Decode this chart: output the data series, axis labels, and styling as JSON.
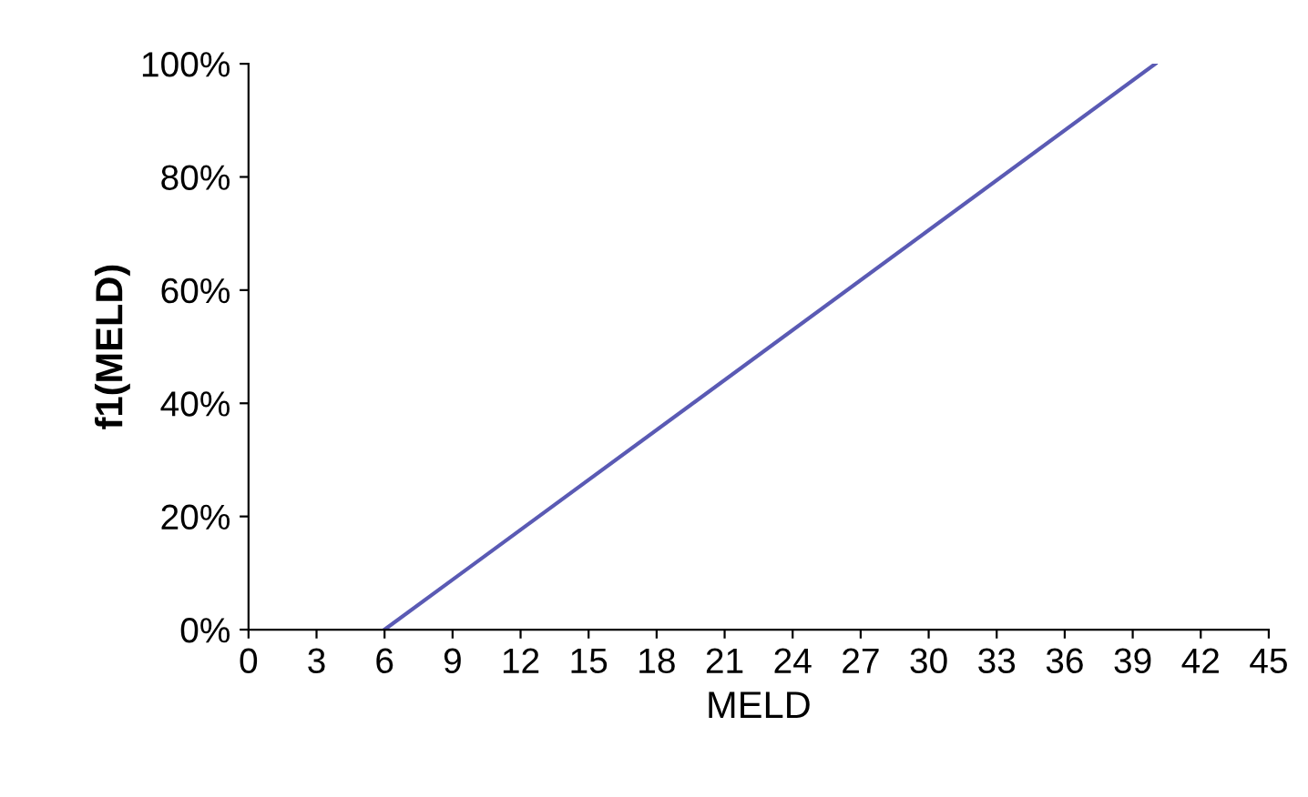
{
  "chart_data": {
    "type": "line",
    "xlabel": "MELD",
    "ylabel": "f1(MELD)",
    "x": [
      6,
      40
    ],
    "values": [
      0,
      100
    ],
    "color": "#5a5ab4",
    "xlim": [
      0,
      45
    ],
    "xticks": [
      0,
      3,
      6,
      9,
      12,
      15,
      18,
      21,
      24,
      27,
      30,
      33,
      36,
      39,
      42,
      45
    ],
    "ylim": [
      0,
      100
    ],
    "yticks": [
      {
        "value": 0,
        "label": "0%"
      },
      {
        "value": 20,
        "label": "20%"
      },
      {
        "value": 40,
        "label": "40%"
      },
      {
        "value": 60,
        "label": "60%"
      },
      {
        "value": 80,
        "label": "80%"
      },
      {
        "value": 100,
        "label": "100%"
      }
    ],
    "grid": false,
    "marker": "none",
    "line_style": "solid"
  }
}
